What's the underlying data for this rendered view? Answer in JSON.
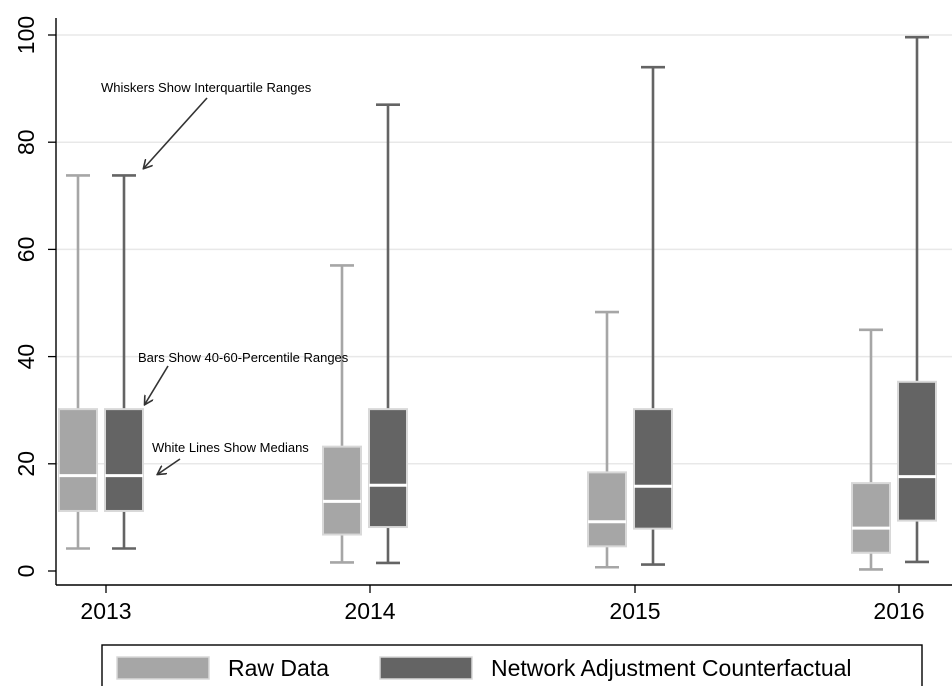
{
  "chart_data": {
    "type": "box",
    "title": "",
    "xlabel": "",
    "ylabel": "",
    "categories": [
      "2013",
      "2014",
      "2015",
      "2016"
    ],
    "y_ticks": [
      "0",
      "20",
      "40",
      "60",
      "80",
      "100"
    ],
    "ylim": [
      0,
      100
    ],
    "grid": "horizontal",
    "legend_position": "bottom",
    "series": [
      {
        "name": "Raw Data",
        "color": "#a6a6a6",
        "whisker_low": [
          4.2,
          1.6,
          0.7,
          0.3
        ],
        "box_low": [
          11.2,
          6.8,
          4.6,
          3.4
        ],
        "median": [
          17.8,
          13.0,
          9.2,
          8.0
        ],
        "box_high": [
          30.2,
          23.2,
          18.4,
          16.4
        ],
        "whisker_high": [
          73.8,
          57.0,
          48.3,
          45.0
        ]
      },
      {
        "name": "Network Adjustment Counterfactual",
        "color": "#646464",
        "whisker_low": [
          4.2,
          1.5,
          1.2,
          1.7
        ],
        "box_low": [
          11.2,
          8.2,
          7.9,
          9.4
        ],
        "median": [
          17.8,
          16.0,
          15.8,
          17.6
        ],
        "box_high": [
          30.2,
          30.2,
          30.2,
          35.3
        ],
        "whisker_high": [
          73.8,
          87.0,
          94.0,
          99.6
        ]
      }
    ],
    "annotations": [
      {
        "text": "Whiskers Show Interquartile Ranges"
      },
      {
        "text": "Bars Show 40-60-Percentile Ranges"
      },
      {
        "text": "White Lines Show Medians"
      }
    ]
  }
}
